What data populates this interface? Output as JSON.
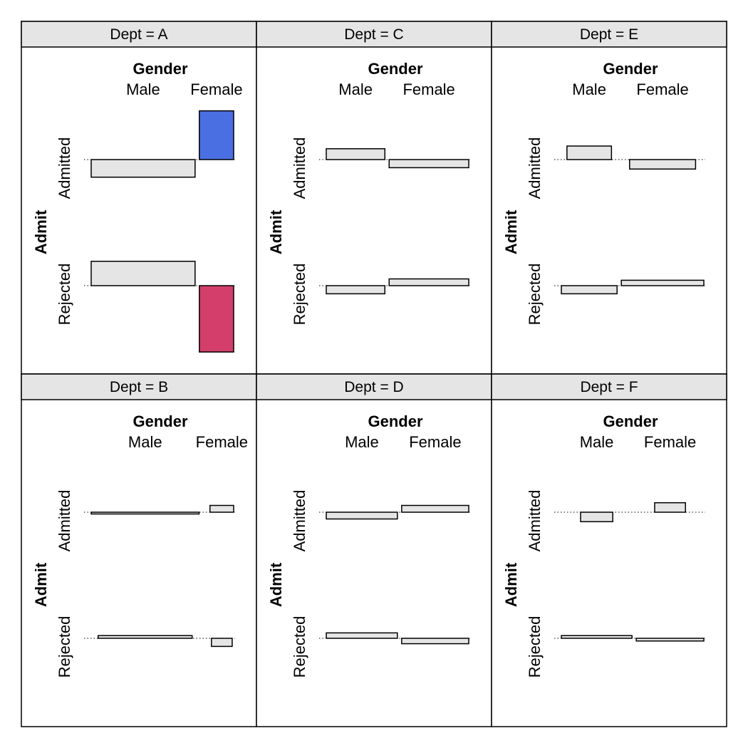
{
  "chart_data": {
    "type": "association",
    "colors": {
      "strip": "#e5e5e5",
      "neutral": "#e5e5e5",
      "positive": "#4a6fe3",
      "negative": "#d33f6a",
      "border": "#000000"
    },
    "row_var": "Admit",
    "col_var": "Gender",
    "row_levels": [
      "Admitted",
      "Rejected"
    ],
    "col_levels": [
      "Male",
      "Female"
    ],
    "panels": [
      {
        "strip": "Dept = A",
        "row_label": "Admit",
        "col_label": "Gender",
        "rows": [
          "Admitted",
          "Rejected"
        ],
        "cols": [
          "Male",
          "Female"
        ],
        "cells": [
          {
            "row": "Admitted",
            "col": "Male",
            "residual": -1.3,
            "expected": 531,
            "fill": "neutral"
          },
          {
            "row": "Admitted",
            "col": "Female",
            "residual": 3.6,
            "expected": 58,
            "fill": "positive"
          },
          {
            "row": "Rejected",
            "col": "Male",
            "residual": 1.8,
            "expected": 294,
            "fill": "neutral"
          },
          {
            "row": "Rejected",
            "col": "Female",
            "residual": -4.9,
            "expected": 32,
            "fill": "negative"
          }
        ]
      },
      {
        "strip": "Dept = C",
        "row_label": "Admit",
        "col_label": "Gender",
        "rows": [
          "Admitted",
          "Rejected"
        ],
        "cols": [
          "Male",
          "Female"
        ],
        "cells": [
          {
            "row": "Admitted",
            "col": "Male",
            "residual": 0.8,
            "expected": 113,
            "fill": "neutral"
          },
          {
            "row": "Admitted",
            "col": "Female",
            "residual": -0.6,
            "expected": 209,
            "fill": "neutral"
          },
          {
            "row": "Rejected",
            "col": "Male",
            "residual": -0.6,
            "expected": 212,
            "fill": "neutral"
          },
          {
            "row": "Rejected",
            "col": "Female",
            "residual": 0.5,
            "expected": 391,
            "fill": "neutral"
          }
        ]
      },
      {
        "strip": "Dept = E",
        "row_label": "Admit",
        "col_label": "Gender",
        "rows": [
          "Admitted",
          "Rejected"
        ],
        "cols": [
          "Male",
          "Female"
        ],
        "cells": [
          {
            "row": "Admitted",
            "col": "Male",
            "residual": 1.0,
            "expected": 46,
            "fill": "neutral"
          },
          {
            "row": "Admitted",
            "col": "Female",
            "residual": -0.7,
            "expected": 101,
            "fill": "neutral"
          },
          {
            "row": "Rejected",
            "col": "Male",
            "residual": -0.6,
            "expected": 145,
            "fill": "neutral"
          },
          {
            "row": "Rejected",
            "col": "Female",
            "residual": 0.4,
            "expected": 318,
            "fill": "neutral"
          }
        ]
      },
      {
        "strip": "Dept = B",
        "row_label": "Admit",
        "col_label": "Gender",
        "rows": [
          "Admitted",
          "Rejected"
        ],
        "cols": [
          "Male",
          "Female"
        ],
        "cells": [
          {
            "row": "Admitted",
            "col": "Male",
            "residual": -0.1,
            "expected": 355,
            "fill": "neutral"
          },
          {
            "row": "Admitted",
            "col": "Female",
            "residual": 0.5,
            "expected": 17,
            "fill": "neutral"
          },
          {
            "row": "Rejected",
            "col": "Male",
            "residual": 0.2,
            "expected": 205,
            "fill": "neutral"
          },
          {
            "row": "Rejected",
            "col": "Female",
            "residual": -0.6,
            "expected": 10,
            "fill": "neutral"
          }
        ]
      },
      {
        "strip": "Dept = D",
        "row_label": "Admit",
        "col_label": "Gender",
        "rows": [
          "Admitted",
          "Rejected"
        ],
        "cols": [
          "Male",
          "Female"
        ],
        "cells": [
          {
            "row": "Admitted",
            "col": "Male",
            "residual": -0.5,
            "expected": 143,
            "fill": "neutral"
          },
          {
            "row": "Admitted",
            "col": "Female",
            "residual": 0.5,
            "expected": 127,
            "fill": "neutral"
          },
          {
            "row": "Rejected",
            "col": "Male",
            "residual": 0.4,
            "expected": 274,
            "fill": "neutral"
          },
          {
            "row": "Rejected",
            "col": "Female",
            "residual": -0.4,
            "expected": 244,
            "fill": "neutral"
          }
        ]
      },
      {
        "strip": "Dept = F",
        "row_label": "Admit",
        "col_label": "Gender",
        "rows": [
          "Admitted",
          "Rejected"
        ],
        "cols": [
          "Male",
          "Female"
        ],
        "cells": [
          {
            "row": "Admitted",
            "col": "Male",
            "residual": -0.7,
            "expected": 24,
            "fill": "neutral"
          },
          {
            "row": "Admitted",
            "col": "Female",
            "residual": 0.7,
            "expected": 22,
            "fill": "neutral"
          },
          {
            "row": "Rejected",
            "col": "Male",
            "residual": 0.2,
            "expected": 349,
            "fill": "neutral"
          },
          {
            "row": "Rejected",
            "col": "Female",
            "residual": -0.2,
            "expected": 319,
            "fill": "neutral"
          }
        ]
      }
    ]
  }
}
